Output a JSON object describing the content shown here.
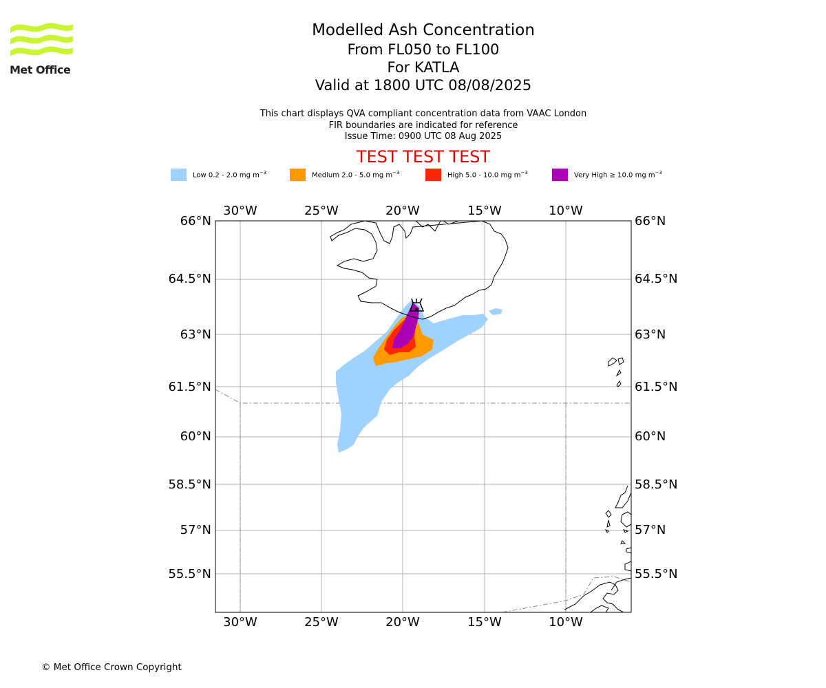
{
  "header": {
    "logo_text": "Met Office",
    "title": "Modelled Ash Concentration",
    "levels": "From FL050 to FL100",
    "volcano": "For KATLA",
    "valid": "Valid at 1800 UTC 08/08/2025",
    "sub_lines": [
      "This chart displays QVA compliant concentration data from VAAC London",
      "FIR boundaries are indicated for reference",
      "Issue Time: 0900 UTC 08 Aug 2025"
    ],
    "test_banner": "TEST TEST TEST"
  },
  "legend": [
    {
      "prefix": "Low 0.2 - 2.0 mg m",
      "exp": "−3",
      "color": "#a0d2ff"
    },
    {
      "prefix": "Medium 2.0 - 5.0 mg m",
      "exp": "−3",
      "color": "#ff9a00"
    },
    {
      "prefix": "High 5.0 - 10.0 mg m",
      "exp": "−3",
      "color": "#ff2800"
    },
    {
      "prefix": "Very High  ≥  10.0 mg m",
      "exp": "−3",
      "color": "#aa00b4"
    }
  ],
  "map": {
    "lon_range": [
      -31.5,
      -6.0
    ],
    "lat_range": [
      54.0,
      66.0
    ],
    "lon_ticks": [
      "30°W",
      "25°W",
      "20°W",
      "15°W",
      "10°W"
    ],
    "lat_ticks": [
      "66°N",
      "64.5°N",
      "63°N",
      "61.5°N",
      "60°N",
      "58.5°N",
      "57°N",
      "55.5°N"
    ],
    "grid": true,
    "volcano_marker": "volcano-icon",
    "volcano_location": {
      "lon": -19.08,
      "lat": 63.63
    }
  },
  "footer": {
    "copyright": "© Met Office Crown Copyright"
  }
}
